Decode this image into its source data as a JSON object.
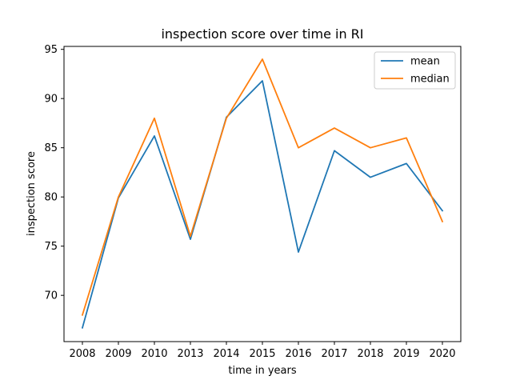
{
  "chart_data": {
    "type": "line",
    "title": "inspection score over time in RI",
    "xlabel": "time in years",
    "ylabel": "inspection score",
    "categories": [
      "2008",
      "2009",
      "2010",
      "2013",
      "2014",
      "2015",
      "2016",
      "2017",
      "2018",
      "2019",
      "2020"
    ],
    "ylim": [
      65.3,
      95.3
    ],
    "yticks": [
      70,
      75,
      80,
      85,
      90,
      95
    ],
    "series": [
      {
        "name": "mean",
        "color": "#1f77b4",
        "values": [
          66.7,
          79.9,
          86.2,
          75.7,
          88.1,
          91.8,
          74.4,
          84.7,
          82.0,
          83.4,
          78.6
        ]
      },
      {
        "name": "median",
        "color": "#ff7f0e",
        "values": [
          68.0,
          80.0,
          88.0,
          76.0,
          88.0,
          94.0,
          85.0,
          87.0,
          85.0,
          86.0,
          77.5
        ]
      }
    ],
    "grid": false,
    "legend_position": "upper right"
  }
}
